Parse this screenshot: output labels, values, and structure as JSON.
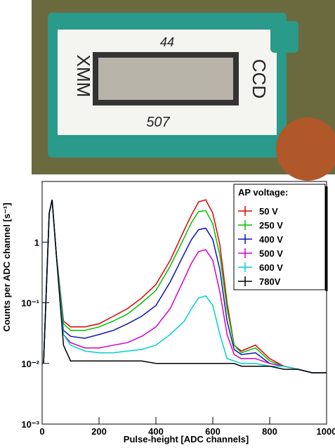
{
  "photo": {
    "labels": [
      "XMM",
      "CCD",
      "44",
      "507"
    ]
  },
  "chart_data": {
    "type": "line",
    "x_label": "Pulse-height [ADC channels]",
    "y_label": "Counts per ADC channel [s⁻¹]",
    "legend_title": "AP voltage:",
    "legend": "top-right",
    "log_y": true,
    "xlim": [
      0,
      1000
    ],
    "xticks": [
      0,
      200,
      400,
      600,
      800,
      1000
    ],
    "ylim": [
      0.001,
      10
    ],
    "yticks": [
      {
        "value": 0.001,
        "label": "10⁻³"
      },
      {
        "value": 0.01,
        "label": "10⁻²"
      },
      {
        "value": 0.1,
        "label": "10⁻¹"
      },
      1
    ],
    "x": [
      5,
      25,
      35,
      50,
      75,
      100,
      150,
      200,
      250,
      300,
      350,
      400,
      450,
      500,
      525,
      550,
      575,
      600,
      625,
      650,
      675,
      700,
      750,
      800,
      850,
      900,
      950,
      1000
    ],
    "series": [
      {
        "name": "50 V",
        "color": "#e00000",
        "values": [
          0.01,
          3,
          5,
          0.6,
          0.05,
          0.04,
          0.04,
          0.045,
          0.06,
          0.08,
          0.12,
          0.2,
          0.5,
          1.6,
          2.8,
          4.6,
          5,
          3,
          0.9,
          0.1,
          0.02,
          0.016,
          0.02,
          0.012,
          0.009,
          0.008,
          0.007,
          0.007
        ]
      },
      {
        "name": "250 V",
        "color": "#00c000",
        "values": [
          0.01,
          3,
          5,
          0.6,
          0.045,
          0.035,
          0.035,
          0.04,
          0.05,
          0.065,
          0.1,
          0.16,
          0.4,
          1.2,
          2.1,
          3.2,
          3.3,
          2,
          0.6,
          0.08,
          0.02,
          0.015,
          0.018,
          0.011,
          0.009,
          0.008,
          0.007,
          0.007
        ]
      },
      {
        "name": "400 V",
        "color": "#1010c0",
        "values": [
          0.01,
          3,
          5,
          0.6,
          0.035,
          0.028,
          0.026,
          0.03,
          0.035,
          0.045,
          0.06,
          0.09,
          0.22,
          0.65,
          1.1,
          1.6,
          1.7,
          1.1,
          0.35,
          0.05,
          0.017,
          0.014,
          0.015,
          0.01,
          0.009,
          0.008,
          0.007,
          0.007
        ]
      },
      {
        "name": "500 V",
        "color": "#d000d0",
        "values": [
          0.01,
          3,
          5,
          0.6,
          0.03,
          0.022,
          0.018,
          0.018,
          0.02,
          0.022,
          0.028,
          0.04,
          0.08,
          0.25,
          0.45,
          0.7,
          0.75,
          0.5,
          0.15,
          0.03,
          0.014,
          0.012,
          0.012,
          0.01,
          0.009,
          0.008,
          0.007,
          0.007
        ]
      },
      {
        "name": "600 V",
        "color": "#00d0d0",
        "values": [
          0.01,
          3,
          5,
          0.6,
          0.03,
          0.02,
          0.016,
          0.015,
          0.015,
          0.016,
          0.017,
          0.02,
          0.03,
          0.05,
          0.08,
          0.12,
          0.13,
          0.09,
          0.03,
          0.012,
          0.011,
          0.01,
          0.01,
          0.009,
          0.009,
          0.008,
          0.007,
          0.007
        ]
      },
      {
        "name": "780V",
        "color": "#000000",
        "values": [
          0.01,
          3,
          5,
          0.6,
          0.02,
          0.011,
          0.011,
          0.011,
          0.011,
          0.011,
          0.011,
          0.01,
          0.01,
          0.01,
          0.01,
          0.01,
          0.01,
          0.01,
          0.01,
          0.01,
          0.01,
          0.009,
          0.009,
          0.009,
          0.008,
          0.008,
          0.007,
          0.007
        ]
      }
    ]
  }
}
